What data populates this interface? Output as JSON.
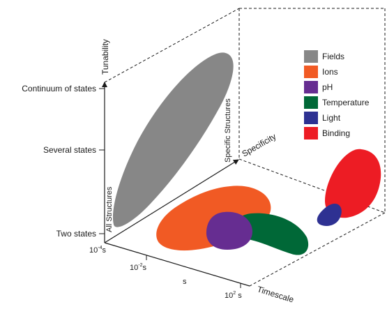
{
  "axes": {
    "tunability": "Tunability",
    "specificity": "Specificity",
    "timescale": "Timescale"
  },
  "tunability_levels": [
    "Continuum of states",
    "Several states",
    "Two states"
  ],
  "specificity_levels": [
    "All Structures",
    "Specific Structures"
  ],
  "timescale_ticks": {
    "t1": {
      "base": "10",
      "exp": "-4",
      "unit": "s"
    },
    "t2": {
      "base": "10",
      "exp": "-2",
      "unit": "s"
    },
    "t3": {
      "unit": "s"
    },
    "t4": {
      "base": "10",
      "exp": "2",
      "unit": " s"
    }
  },
  "legend": [
    {
      "label": "Fields",
      "color": "#878787"
    },
    {
      "label": "Ions",
      "color": "#F15A24"
    },
    {
      "label": "pH",
      "color": "#662D91"
    },
    {
      "label": "Temperature",
      "color": "#006837"
    },
    {
      "label": "Light",
      "color": "#2E3192"
    },
    {
      "label": "Binding",
      "color": "#ED1C24"
    }
  ]
}
